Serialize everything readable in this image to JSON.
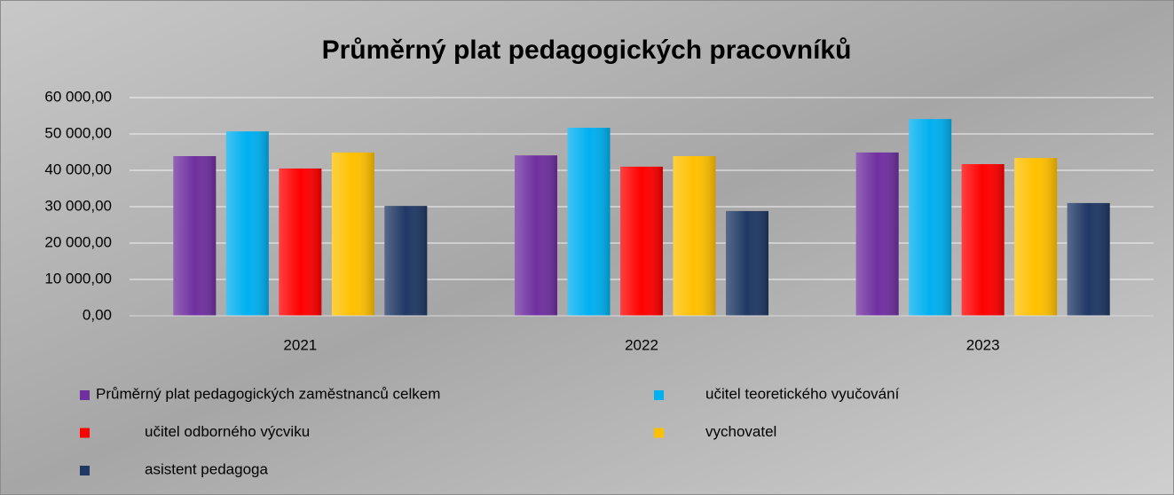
{
  "chart_data": {
    "type": "bar",
    "title": "Průměrný plat pedagogických pracovníků",
    "categories": [
      "2021",
      "2022",
      "2023"
    ],
    "series": [
      {
        "name": "Průměrný plat pedagogických zaměstnanců celkem",
        "color": "#7030a0",
        "values": [
          43900,
          44100,
          44900
        ]
      },
      {
        "name": "učitel teoretického vyučování",
        "color": "#00b0f0",
        "values": [
          50700,
          51700,
          54100
        ]
      },
      {
        "name": "učitel odborného výcviku",
        "color": "#ff0000",
        "values": [
          40500,
          41000,
          41700
        ]
      },
      {
        "name": "vychovatel",
        "color": "#ffc000",
        "values": [
          44900,
          43900,
          43400
        ]
      },
      {
        "name": "asistent pedagoga",
        "color": "#1f3864",
        "values": [
          30200,
          28800,
          31000
        ]
      }
    ],
    "ylim": [
      0,
      60000
    ],
    "yticks": [
      {
        "value": 0,
        "label": "0,00"
      },
      {
        "value": 10000,
        "label": "10 000,00"
      },
      {
        "value": 20000,
        "label": "20 000,00"
      },
      {
        "value": 30000,
        "label": "30 000,00"
      },
      {
        "value": 40000,
        "label": "40 000,00"
      },
      {
        "value": 50000,
        "label": "50 000,00"
      },
      {
        "value": 60000,
        "label": "60 000,00"
      }
    ],
    "grid": true,
    "legend": "bottom"
  }
}
